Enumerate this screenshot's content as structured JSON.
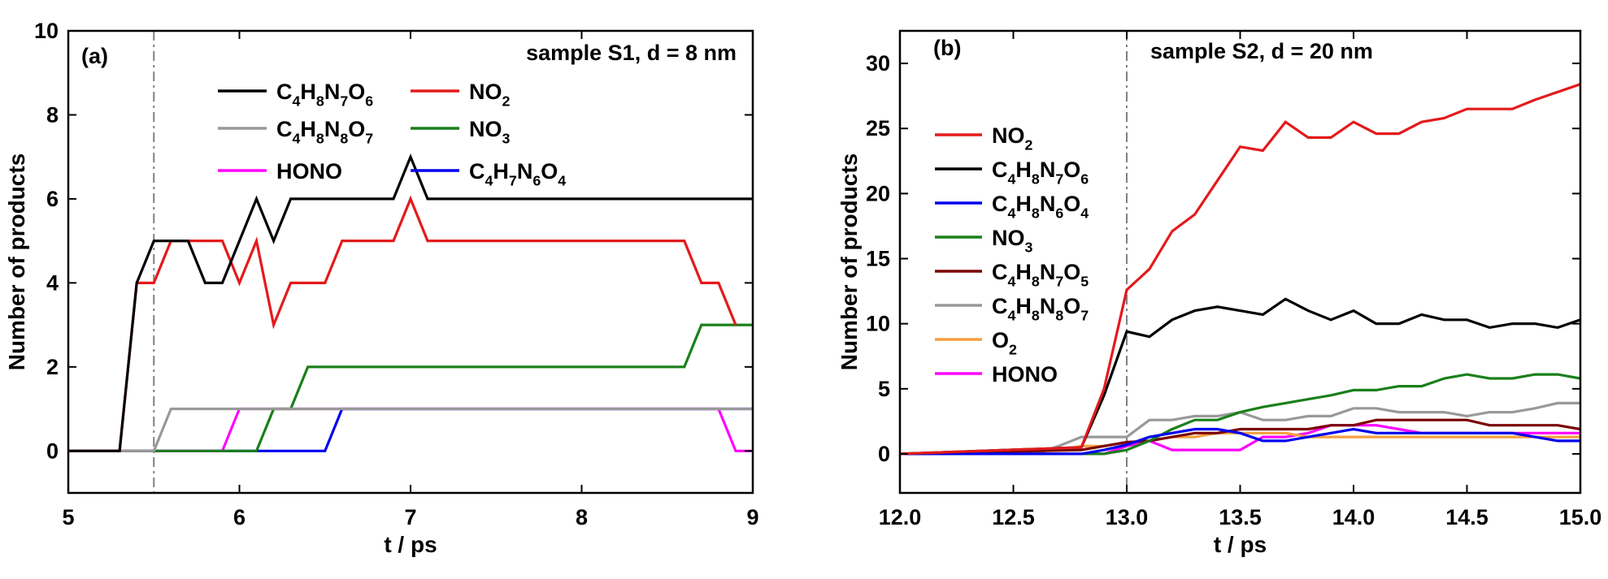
{
  "chart_data": [
    {
      "type": "line",
      "panel_label": "(a)",
      "annotation": "sample S1, d = 8 nm",
      "xlabel": "t / ps",
      "ylabel": "Number of products",
      "xlim": [
        5,
        9
      ],
      "ylim": [
        -1,
        10
      ],
      "xticks": [
        "5",
        "6",
        "7",
        "8",
        "9"
      ],
      "yticks": [
        "0",
        "2",
        "4",
        "6",
        "8",
        "10"
      ],
      "vline_x": 5.5,
      "legend_layout": "two-column, top",
      "series": [
        {
          "name": "C4H8N7O6",
          "color": "#000000",
          "x": [
            5,
            5.3,
            5.4,
            5.5,
            5.7,
            5.8,
            5.9,
            6.0,
            6.1,
            6.2,
            6.3,
            6.9,
            7.0,
            7.1,
            9.0
          ],
          "y": [
            0,
            0,
            4,
            5,
            5,
            4,
            4,
            5,
            6,
            5,
            6,
            6,
            7,
            6,
            6
          ]
        },
        {
          "name": "NO2",
          "color": "#e41a1c",
          "x": [
            5,
            5.3,
            5.4,
            5.5,
            5.6,
            5.9,
            6.0,
            6.1,
            6.2,
            6.3,
            6.5,
            6.6,
            6.9,
            7.0,
            7.1,
            8.6,
            8.7,
            8.8,
            8.9
          ],
          "y": [
            0,
            0,
            4,
            4,
            5,
            5,
            4,
            5,
            3,
            4,
            4,
            5,
            5,
            6,
            5,
            5,
            4,
            4,
            3
          ]
        },
        {
          "name": "C4H8N8O7",
          "color": "#999999",
          "x": [
            5,
            5.5,
            5.6,
            9.0
          ],
          "y": [
            0,
            0,
            1,
            1
          ]
        },
        {
          "name": "NO3",
          "color": "#1a7f1a",
          "x": [
            5,
            6.1,
            6.2,
            6.3,
            6.4,
            8.6,
            8.7,
            9.0
          ],
          "y": [
            0,
            0,
            1,
            1,
            2,
            2,
            3,
            3
          ]
        },
        {
          "name": "HONO",
          "color": "#ff00ff",
          "x": [
            5,
            5.9,
            6.0,
            6.6,
            8.8,
            8.9,
            9.0
          ],
          "y": [
            0,
            0,
            1,
            1,
            1,
            0,
            0
          ]
        },
        {
          "name": "C4H7N6O4",
          "color": "#0000ee",
          "x": [
            5,
            6.5,
            6.6,
            9.0
          ],
          "y": [
            0,
            0,
            1,
            1
          ]
        }
      ]
    },
    {
      "type": "line",
      "panel_label": "(b)",
      "annotation": "sample S2, d = 20 nm",
      "xlabel": "t / ps",
      "ylabel": "Number of products",
      "xlim": [
        12.0,
        15.0
      ],
      "ylim": [
        -3,
        32.5
      ],
      "xticks": [
        "12.0",
        "12.5",
        "13.0",
        "13.5",
        "14.0",
        "14.5",
        "15.0"
      ],
      "yticks": [
        "0",
        "5",
        "10",
        "15",
        "20",
        "25",
        "30"
      ],
      "vline_x": 13.0,
      "legend_layout": "single column, left",
      "series": [
        {
          "name": "NO2",
          "color": "#e41a1c",
          "x": [
            12.0,
            12.8,
            12.9,
            13.0,
            13.1,
            13.2,
            13.3,
            13.4,
            13.5,
            13.6,
            13.7,
            13.8,
            13.9,
            14.0,
            14.1,
            14.2,
            14.3,
            14.4,
            14.5,
            14.6,
            14.7,
            14.8,
            14.9,
            15.0
          ],
          "y": [
            0,
            0.5,
            5,
            12.6,
            14.2,
            17.1,
            18.4,
            21,
            23.6,
            23.3,
            25.5,
            24.3,
            24.3,
            25.5,
            24.6,
            24.6,
            25.5,
            25.8,
            26.5,
            26.5,
            26.5,
            27.2,
            27.8,
            28.4
          ]
        },
        {
          "name": "C4H8N7O6",
          "color": "#000000",
          "x": [
            12.0,
            12.8,
            12.9,
            13.0,
            13.1,
            13.2,
            13.3,
            13.4,
            13.5,
            13.6,
            13.7,
            13.8,
            13.9,
            14.0,
            14.1,
            14.2,
            14.3,
            14.4,
            14.5,
            14.6,
            14.7,
            14.8,
            14.9,
            15.0
          ],
          "y": [
            0,
            0.5,
            4.5,
            9.4,
            9,
            10.3,
            11,
            11.3,
            11,
            10.7,
            11.9,
            11,
            10.3,
            11,
            10,
            10,
            10.7,
            10.3,
            10.3,
            9.7,
            10,
            10,
            9.7,
            10.3
          ]
        },
        {
          "name": "C4H8N6O4",
          "color": "#0000ee",
          "x": [
            12.0,
            12.8,
            12.9,
            13.0,
            13.1,
            13.2,
            13.3,
            13.4,
            13.5,
            13.6,
            13.7,
            13.8,
            13.9,
            14.0,
            14.1,
            14.2,
            14.3,
            14.4,
            14.5,
            14.6,
            14.7,
            14.8,
            14.9,
            15.0
          ],
          "y": [
            0,
            0,
            0.3,
            0.7,
            1.3,
            1.6,
            1.9,
            1.9,
            1.6,
            1,
            1,
            1.3,
            1.6,
            1.9,
            1.6,
            1.6,
            1.6,
            1.6,
            1.6,
            1.6,
            1.6,
            1.3,
            1,
            1
          ]
        },
        {
          "name": "NO3",
          "color": "#1a7f1a",
          "x": [
            12.0,
            12.9,
            13.0,
            13.1,
            13.2,
            13.3,
            13.4,
            13.5,
            13.6,
            13.7,
            13.8,
            13.9,
            14.0,
            14.1,
            14.2,
            14.3,
            14.4,
            14.5,
            14.6,
            14.7,
            14.8,
            14.9,
            15.0
          ],
          "y": [
            0,
            0,
            0.3,
            1,
            1.9,
            2.6,
            2.6,
            3.2,
            3.6,
            3.9,
            4.2,
            4.5,
            4.9,
            4.9,
            5.2,
            5.2,
            5.8,
            6.1,
            5.8,
            5.8,
            6.1,
            6.1,
            5.8
          ]
        },
        {
          "name": "C4H8N7O5",
          "color": "#7b0000",
          "x": [
            12.0,
            12.8,
            12.9,
            13.0,
            13.1,
            13.2,
            13.3,
            13.4,
            13.5,
            13.6,
            13.7,
            13.8,
            13.9,
            14.0,
            14.1,
            14.2,
            14.3,
            14.4,
            14.5,
            14.6,
            14.7,
            14.8,
            14.9,
            15.0
          ],
          "y": [
            0,
            0.3,
            0.6,
            0.9,
            1,
            1.3,
            1.6,
            1.6,
            1.9,
            1.9,
            1.9,
            1.9,
            2.2,
            2.2,
            2.6,
            2.6,
            2.6,
            2.6,
            2.6,
            2.2,
            2.2,
            2.2,
            2.2,
            1.9
          ]
        },
        {
          "name": "C4H8N8O7",
          "color": "#999999",
          "x": [
            12.0,
            12.6,
            12.7,
            12.8,
            12.9,
            13.0,
            13.1,
            13.2,
            13.3,
            13.4,
            13.5,
            13.6,
            13.7,
            13.8,
            13.9,
            14.0,
            14.1,
            14.2,
            14.3,
            14.4,
            14.5,
            14.6,
            14.7,
            14.8,
            14.9,
            15.0
          ],
          "y": [
            0,
            0,
            0.6,
            1.3,
            1.3,
            1.3,
            2.6,
            2.6,
            2.9,
            2.9,
            3.2,
            2.6,
            2.6,
            2.9,
            2.9,
            3.5,
            3.5,
            3.2,
            3.2,
            3.2,
            2.9,
            3.2,
            3.2,
            3.5,
            3.9,
            3.9
          ]
        },
        {
          "name": "O2",
          "color": "#f5a040",
          "x": [
            12.0,
            12.7,
            12.8,
            12.9,
            13.0,
            13.1,
            13.2,
            13.3,
            13.4,
            13.5,
            13.6,
            13.7,
            13.8,
            13.9,
            14.0,
            15.0
          ],
          "y": [
            0,
            0.3,
            0.6,
            0.6,
            0.9,
            1,
            1.3,
            1.3,
            1.6,
            1.6,
            1.6,
            1.6,
            1.3,
            1.3,
            1.3,
            1.3
          ]
        },
        {
          "name": "HONO",
          "color": "#ff00ff",
          "x": [
            12.0,
            12.9,
            13.0,
            13.1,
            13.2,
            13.3,
            13.4,
            13.5,
            13.6,
            13.7,
            13.8,
            13.9,
            14.0,
            14.1,
            14.2,
            14.3,
            14.4,
            15.0
          ],
          "y": [
            0,
            0,
            0.6,
            1,
            0.3,
            0.3,
            0.3,
            0.3,
            1.3,
            1.3,
            1.6,
            2.2,
            2.2,
            2.2,
            1.9,
            1.6,
            1.6,
            1.6
          ]
        }
      ]
    }
  ]
}
